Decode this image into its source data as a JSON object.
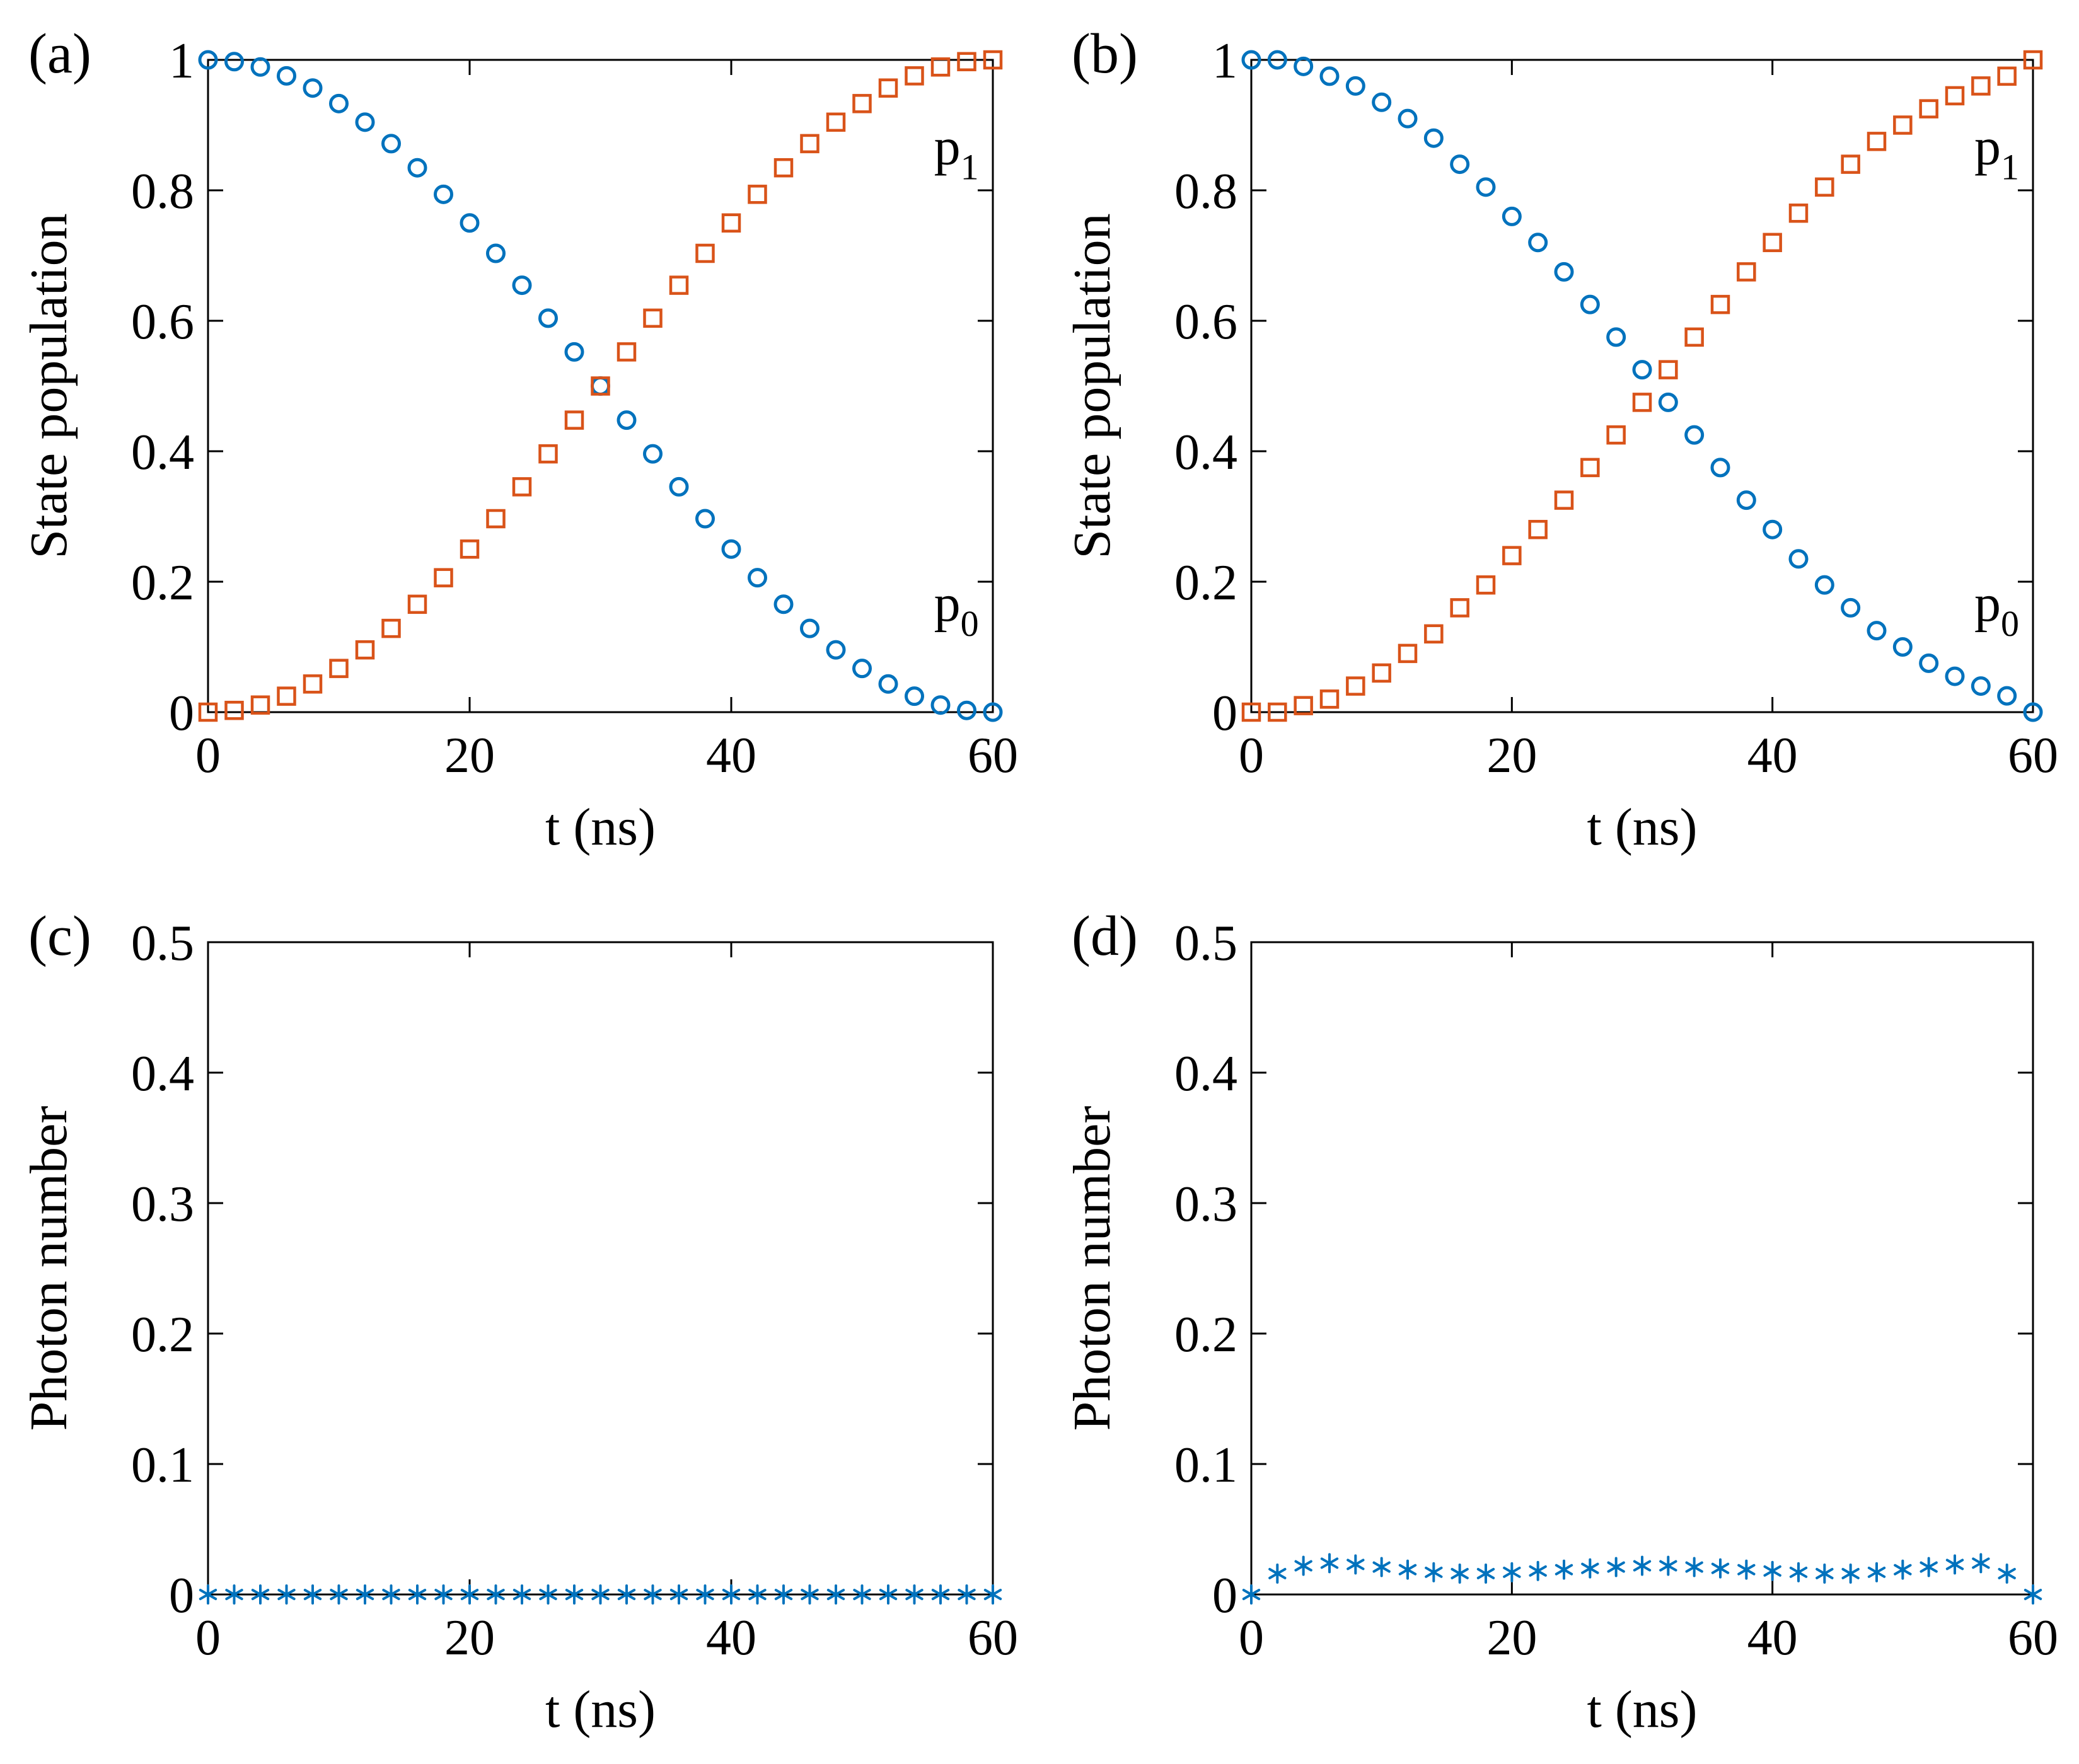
{
  "colors": {
    "p0": "#0072BD",
    "p1": "#D95319",
    "photon": "#0072BD",
    "axis": "#000000"
  },
  "chart_data": [
    {
      "panel": "(a)",
      "type": "scatter",
      "xlabel": "t (ns)",
      "ylabel": "State population",
      "xlim": [
        0,
        60
      ],
      "ylim": [
        0,
        1
      ],
      "xticks": [
        0,
        20,
        40,
        60
      ],
      "xtick_labels": [
        "0",
        "20",
        "40",
        "60"
      ],
      "yticks": [
        0,
        0.2,
        0.4,
        0.6,
        0.8,
        1
      ],
      "ytick_labels": [
        "0",
        "0.2",
        "0.4",
        "0.6",
        "0.8",
        "1"
      ],
      "annotations": [
        {
          "main": "p",
          "sub": "1",
          "x": 55.5,
          "y": 0.84
        },
        {
          "main": "p",
          "sub": "0",
          "x": 55.5,
          "y": 0.14
        }
      ],
      "series": [
        {
          "name": "p0",
          "marker": "circle",
          "color": "#0072BD",
          "x": [
            0,
            2,
            4,
            6,
            8,
            10,
            12,
            14,
            16,
            18,
            20,
            22,
            24,
            26,
            28,
            30,
            32,
            34,
            36,
            38,
            40,
            42,
            44,
            46,
            48,
            50,
            52,
            54,
            56,
            58,
            60
          ],
          "y": [
            1.0,
            0.9973,
            0.9891,
            0.9755,
            0.9568,
            0.933,
            0.9045,
            0.8716,
            0.8346,
            0.7939,
            0.75,
            0.7034,
            0.6545,
            0.604,
            0.5523,
            0.5,
            0.4477,
            0.396,
            0.3455,
            0.2966,
            0.25,
            0.2061,
            0.1654,
            0.1284,
            0.0955,
            0.067,
            0.0432,
            0.0245,
            0.0109,
            0.0027,
            0.0
          ]
        },
        {
          "name": "p1",
          "marker": "square",
          "color": "#D95319",
          "x": [
            0,
            2,
            4,
            6,
            8,
            10,
            12,
            14,
            16,
            18,
            20,
            22,
            24,
            26,
            28,
            30,
            32,
            34,
            36,
            38,
            40,
            42,
            44,
            46,
            48,
            50,
            52,
            54,
            56,
            58,
            60
          ],
          "y": [
            0.0,
            0.0027,
            0.0109,
            0.0245,
            0.0432,
            0.067,
            0.0955,
            0.1284,
            0.1654,
            0.2061,
            0.25,
            0.2966,
            0.3455,
            0.396,
            0.4477,
            0.5,
            0.5523,
            0.604,
            0.6545,
            0.7034,
            0.75,
            0.7939,
            0.8346,
            0.8716,
            0.9045,
            0.933,
            0.9568,
            0.9755,
            0.9891,
            0.9973,
            1.0
          ]
        }
      ]
    },
    {
      "panel": "(b)",
      "type": "scatter",
      "xlabel": "t (ns)",
      "ylabel": "State population",
      "xlim": [
        0,
        60
      ],
      "ylim": [
        0,
        1
      ],
      "xticks": [
        0,
        20,
        40,
        60
      ],
      "xtick_labels": [
        "0",
        "20",
        "40",
        "60"
      ],
      "yticks": [
        0,
        0.2,
        0.4,
        0.6,
        0.8,
        1
      ],
      "ytick_labels": [
        "0",
        "0.2",
        "0.4",
        "0.6",
        "0.8",
        "1"
      ],
      "annotations": [
        {
          "main": "p",
          "sub": "1",
          "x": 55.5,
          "y": 0.84
        },
        {
          "main": "p",
          "sub": "0",
          "x": 55.5,
          "y": 0.14
        }
      ],
      "series": [
        {
          "name": "p0",
          "marker": "circle",
          "color": "#0072BD",
          "x": [
            0,
            2,
            4,
            6,
            8,
            10,
            12,
            14,
            16,
            18,
            20,
            22,
            24,
            26,
            28,
            30,
            32,
            34,
            36,
            38,
            40,
            42,
            44,
            46,
            48,
            50,
            52,
            54,
            56,
            58,
            60
          ],
          "y": [
            1.0,
            1.0,
            0.99,
            0.975,
            0.96,
            0.935,
            0.91,
            0.88,
            0.84,
            0.805,
            0.76,
            0.72,
            0.675,
            0.625,
            0.575,
            0.525,
            0.475,
            0.425,
            0.375,
            0.325,
            0.28,
            0.235,
            0.195,
            0.16,
            0.125,
            0.1,
            0.075,
            0.055,
            0.04,
            0.025,
            0.0
          ]
        },
        {
          "name": "p1",
          "marker": "square",
          "color": "#D95319",
          "x": [
            0,
            2,
            4,
            6,
            8,
            10,
            12,
            14,
            16,
            18,
            20,
            22,
            24,
            26,
            28,
            30,
            32,
            34,
            36,
            38,
            40,
            42,
            44,
            46,
            48,
            50,
            52,
            54,
            56,
            58,
            60
          ],
          "y": [
            0.0,
            0.0,
            0.01,
            0.02,
            0.04,
            0.06,
            0.09,
            0.12,
            0.16,
            0.195,
            0.24,
            0.28,
            0.325,
            0.375,
            0.425,
            0.475,
            0.525,
            0.575,
            0.625,
            0.675,
            0.72,
            0.765,
            0.805,
            0.84,
            0.875,
            0.9,
            0.925,
            0.945,
            0.96,
            0.975,
            1.0
          ]
        }
      ]
    },
    {
      "panel": "(c)",
      "type": "scatter",
      "xlabel": "t (ns)",
      "ylabel": "Photon number",
      "xlim": [
        0,
        60
      ],
      "ylim": [
        0,
        0.5
      ],
      "xticks": [
        0,
        20,
        40,
        60
      ],
      "xtick_labels": [
        "0",
        "20",
        "40",
        "60"
      ],
      "yticks": [
        0,
        0.1,
        0.2,
        0.3,
        0.4,
        0.5
      ],
      "ytick_labels": [
        "0",
        "0.1",
        "0.2",
        "0.3",
        "0.4",
        "0.5"
      ],
      "annotations": [],
      "series": [
        {
          "name": "photon number",
          "marker": "asterisk",
          "color": "#0072BD",
          "x": [
            0,
            2,
            4,
            6,
            8,
            10,
            12,
            14,
            16,
            18,
            20,
            22,
            24,
            26,
            28,
            30,
            32,
            34,
            36,
            38,
            40,
            42,
            44,
            46,
            48,
            50,
            52,
            54,
            56,
            58,
            60
          ],
          "y": [
            0,
            0,
            0,
            0,
            0,
            0,
            0,
            0,
            0,
            0,
            0,
            0,
            0,
            0,
            0,
            0,
            0,
            0,
            0,
            0,
            0,
            0,
            0,
            0,
            0,
            0,
            0,
            0,
            0,
            0,
            0
          ]
        }
      ]
    },
    {
      "panel": "(d)",
      "type": "scatter",
      "xlabel": "t (ns)",
      "ylabel": "Photon number",
      "xlim": [
        0,
        60
      ],
      "ylim": [
        0,
        0.5
      ],
      "xticks": [
        0,
        20,
        40,
        60
      ],
      "xtick_labels": [
        "0",
        "20",
        "40",
        "60"
      ],
      "yticks": [
        0,
        0.1,
        0.2,
        0.3,
        0.4,
        0.5
      ],
      "ytick_labels": [
        "0",
        "0.1",
        "0.2",
        "0.3",
        "0.4",
        "0.5"
      ],
      "annotations": [],
      "series": [
        {
          "name": "photon number",
          "marker": "asterisk",
          "color": "#0072BD",
          "x": [
            0,
            2,
            4,
            6,
            8,
            10,
            12,
            14,
            16,
            18,
            20,
            22,
            24,
            26,
            28,
            30,
            32,
            34,
            36,
            38,
            40,
            42,
            44,
            46,
            48,
            50,
            52,
            54,
            56,
            58,
            60
          ],
          "y": [
            0,
            0.016,
            0.022,
            0.024,
            0.023,
            0.021,
            0.019,
            0.017,
            0.016,
            0.016,
            0.017,
            0.018,
            0.019,
            0.02,
            0.021,
            0.022,
            0.022,
            0.021,
            0.02,
            0.019,
            0.018,
            0.017,
            0.016,
            0.016,
            0.017,
            0.019,
            0.021,
            0.023,
            0.024,
            0.016,
            0
          ]
        }
      ]
    }
  ]
}
